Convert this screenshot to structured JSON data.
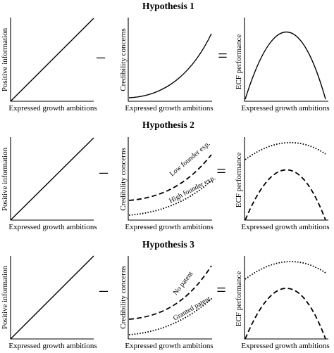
{
  "rows": [
    {
      "title": "Hypothesis 1",
      "panels": [
        {
          "xlabel": "Expressed growth ambitions",
          "ylabel": "Positive information"
        },
        {
          "xlabel": "Expressed growth ambitions",
          "ylabel": "Credibility concerns"
        },
        {
          "xlabel": "Expressed growth ambitions",
          "ylabel": "ECF performance"
        }
      ],
      "operators": [
        "–",
        "="
      ],
      "annotations": []
    },
    {
      "title": "Hypothesis 2",
      "panels": [
        {
          "xlabel": "Expressed growth ambitions",
          "ylabel": "Positive information"
        },
        {
          "xlabel": "Expressed growth ambitions",
          "ylabel": "Credibility concerns"
        },
        {
          "xlabel": "Expressed growth ambitions",
          "ylabel": "ECF performance"
        }
      ],
      "operators": [
        "–",
        "="
      ],
      "annotations": [
        "Low founder exp.",
        "High founder exp."
      ]
    },
    {
      "title": "Hypothesis 3",
      "panels": [
        {
          "xlabel": "Expressed growth ambitions",
          "ylabel": "Positive information"
        },
        {
          "xlabel": "Expressed growth ambitions",
          "ylabel": "Credibility concerns"
        },
        {
          "xlabel": "Expressed growth ambitions",
          "ylabel": "ECF performance"
        }
      ],
      "operators": [
        "–",
        "="
      ],
      "annotations": [
        "No patent",
        "Granted patent"
      ]
    }
  ]
}
